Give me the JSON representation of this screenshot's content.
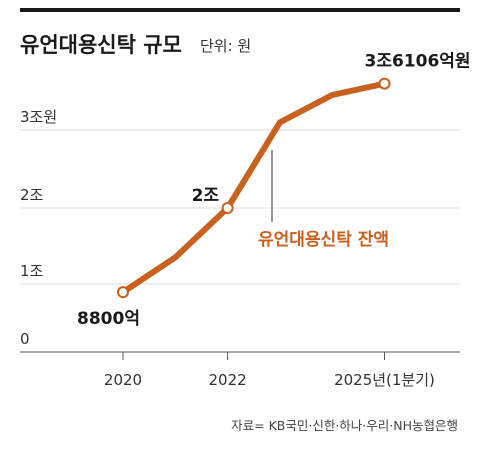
{
  "header": {
    "title": "유언대용신탁 규모",
    "unit": "단위: 원"
  },
  "colors": {
    "series": "#c8601e",
    "grid": "#dcdcdc",
    "axis": "#555555",
    "text": "#1a1a1a"
  },
  "chart_data": {
    "type": "line",
    "title": "유언대용신탁 규모",
    "unit_note": "단위: 원",
    "y_ticks": [
      {
        "value": 0,
        "label": "0"
      },
      {
        "value": 10000,
        "label": "1조"
      },
      {
        "value": 20000,
        "label": "2조"
      },
      {
        "value": 30000,
        "label": "3조원"
      }
    ],
    "ylim": [
      0,
      36000
    ],
    "x_ticks": [
      {
        "value": 2020,
        "label": "2020"
      },
      {
        "value": 2022,
        "label": "2022"
      },
      {
        "value": 2025,
        "label": "2025년(1분기)"
      }
    ],
    "xlim": [
      2019.3,
      2026.5
    ],
    "series": [
      {
        "name": "유언대용신탁 잔액",
        "points": [
          {
            "x": 2020,
            "y": 8800
          },
          {
            "x": 2021,
            "y": 13500
          },
          {
            "x": 2022,
            "y": 20000
          },
          {
            "x": 2023,
            "y": 31000
          },
          {
            "x": 2024,
            "y": 34600
          },
          {
            "x": 2025,
            "y": 36106
          }
        ]
      }
    ],
    "annotations": [
      {
        "x": 2020,
        "y": 8800,
        "text": "8800억"
      },
      {
        "x": 2022,
        "y": 20000,
        "text": "2조"
      },
      {
        "x": 2025,
        "y": 36106,
        "text": "3조6106억원"
      }
    ],
    "grid": true,
    "legend": "inline"
  },
  "source": "자료= KB국민·신한·하나·우리·NH농협은행"
}
